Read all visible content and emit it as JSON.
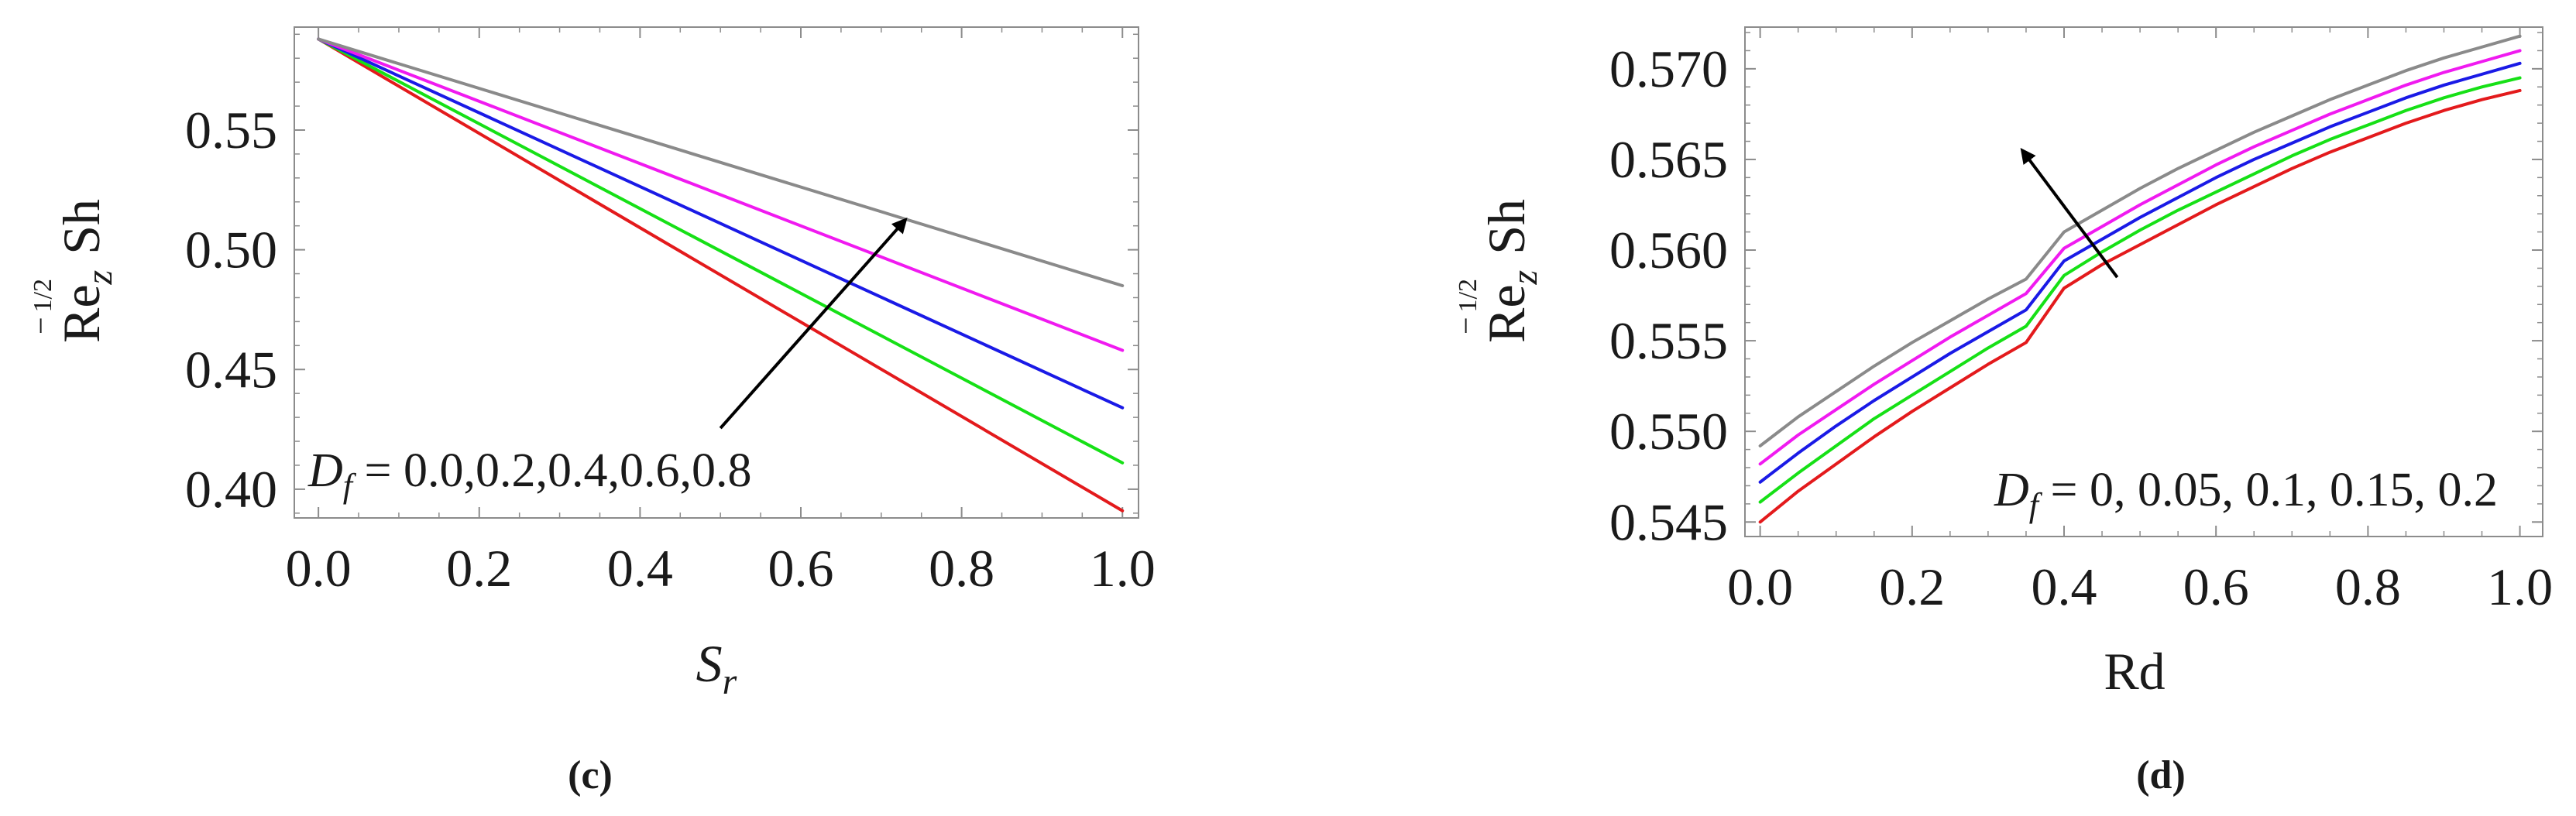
{
  "chart_data": [
    {
      "id": "c",
      "type": "line",
      "caption": "(c)",
      "xlabel": "S",
      "xlabel_sub": "r",
      "ylabel": {
        "base": "Re",
        "sub": "z",
        "sup": "−",
        "sup_num": "1",
        "sup_den": "2",
        "tail": "Sh"
      },
      "xlim": [
        -0.03,
        1.02
      ],
      "ylim": [
        0.388,
        0.593
      ],
      "xticks": [
        0.0,
        0.2,
        0.4,
        0.6,
        0.8,
        1.0
      ],
      "xtick_labels": [
        "0.0",
        "0.2",
        "0.4",
        "0.6",
        "0.8",
        "1.0"
      ],
      "yticks": [
        0.4,
        0.45,
        0.5,
        0.55
      ],
      "ytick_labels": [
        "0.40",
        "0.45",
        "0.50",
        "0.55"
      ],
      "legend": {
        "symbol": "D",
        "symbol_sub": "f",
        "text": " = 0.0,0.2,0.4,0.6,0.8",
        "placement": "bottom-left"
      },
      "arrow": {
        "from": [
          0.5,
          0.4255
        ],
        "to": [
          0.73,
          0.5125
        ],
        "direction": "increasing D_f"
      },
      "series": [
        {
          "name": "D_f = 0.0",
          "color": "#e31a1c",
          "x": [
            0.0,
            1.0
          ],
          "y": [
            0.588,
            0.391
          ]
        },
        {
          "name": "D_f = 0.2",
          "color": "#16e016",
          "x": [
            0.0,
            1.0
          ],
          "y": [
            0.588,
            0.411
          ]
        },
        {
          "name": "D_f = 0.4",
          "color": "#1a1ae6",
          "x": [
            0.0,
            1.0
          ],
          "y": [
            0.588,
            0.434
          ]
        },
        {
          "name": "D_f = 0.6",
          "color": "#f01af0",
          "x": [
            0.0,
            1.0
          ],
          "y": [
            0.588,
            0.458
          ]
        },
        {
          "name": "D_f = 0.8",
          "color": "#8a8a8a",
          "x": [
            0.0,
            1.0
          ],
          "y": [
            0.588,
            0.485
          ]
        }
      ]
    },
    {
      "id": "d",
      "type": "line",
      "caption": "(d)",
      "xlabel": "Rd",
      "xlabel_sub": "",
      "ylabel": {
        "base": "Re",
        "sub": "z",
        "sup": "−",
        "sup_num": "1",
        "sup_den": "2",
        "tail": "Sh"
      },
      "xlim": [
        -0.02,
        1.03
      ],
      "ylim": [
        0.5442,
        0.5723
      ],
      "xticks": [
        0.0,
        0.2,
        0.4,
        0.6,
        0.8,
        1.0
      ],
      "xtick_labels": [
        "0.0",
        "0.2",
        "0.4",
        "0.6",
        "0.8",
        "1.0"
      ],
      "yticks": [
        0.545,
        0.55,
        0.555,
        0.56,
        0.565,
        0.57
      ],
      "ytick_labels": [
        "0.545",
        "0.550",
        "0.555",
        "0.560",
        "0.565",
        "0.570"
      ],
      "legend": {
        "symbol": "D",
        "symbol_sub": "f",
        "text": " =  0, 0.05, 0.1, 0.15, 0.2",
        "placement": "bottom-right"
      },
      "arrow": {
        "from": [
          0.47,
          0.5585
        ],
        "to": [
          0.345,
          0.5655
        ],
        "direction": "increasing D_f"
      },
      "curve_x": [
        0,
        0.05,
        0.1,
        0.15,
        0.2,
        0.25,
        0.3,
        0.35,
        0.4,
        0.45,
        0.5,
        0.55,
        0.6,
        0.65,
        0.7,
        0.75,
        0.8,
        0.85,
        0.9,
        0.95,
        1.0
      ],
      "series": [
        {
          "name": "D_f = 0",
          "color": "#e31a1c",
          "y": [
            0.545,
            0.5467,
            0.5482,
            0.5497,
            0.5511,
            0.5524,
            0.5537,
            0.5549,
            0.5579,
            0.5592,
            0.5603,
            0.5614,
            0.5625,
            0.5635,
            0.5645,
            0.5654,
            0.5662,
            0.567,
            0.5677,
            0.5683,
            0.5688
          ]
        },
        {
          "name": "D_f = 0.05",
          "color": "#16e016",
          "y": [
            0.5461,
            0.5477,
            0.5492,
            0.5507,
            0.552,
            0.5533,
            0.5546,
            0.5558,
            0.5586,
            0.5599,
            0.5611,
            0.5622,
            0.5632,
            0.5642,
            0.5652,
            0.5661,
            0.5669,
            0.5677,
            0.5684,
            0.569,
            0.5695
          ]
        },
        {
          "name": "D_f = 0.1",
          "color": "#1a1ae6",
          "y": [
            0.5472,
            0.5488,
            0.5503,
            0.5517,
            0.553,
            0.5543,
            0.5555,
            0.5567,
            0.5594,
            0.5606,
            0.5618,
            0.5629,
            0.564,
            0.565,
            0.5659,
            0.5668,
            0.5676,
            0.5684,
            0.5691,
            0.5697,
            0.5703
          ]
        },
        {
          "name": "D_f = 0.15",
          "color": "#f01af0",
          "y": [
            0.5482,
            0.5498,
            0.5512,
            0.5526,
            0.5539,
            0.5552,
            0.5564,
            0.5576,
            0.5601,
            0.5613,
            0.5625,
            0.5636,
            0.5647,
            0.5657,
            0.5666,
            0.5675,
            0.5683,
            0.5691,
            0.5698,
            0.5704,
            0.571
          ]
        },
        {
          "name": "D_f = 0.2",
          "color": "#8a8a8a",
          "y": [
            0.5492,
            0.5508,
            0.5522,
            0.5536,
            0.5549,
            0.5561,
            0.5573,
            0.5584,
            0.561,
            0.5622,
            0.5634,
            0.5645,
            0.5655,
            0.5665,
            0.5674,
            0.5683,
            0.5691,
            0.5699,
            0.5706,
            0.5712,
            0.5718
          ]
        }
      ]
    }
  ]
}
